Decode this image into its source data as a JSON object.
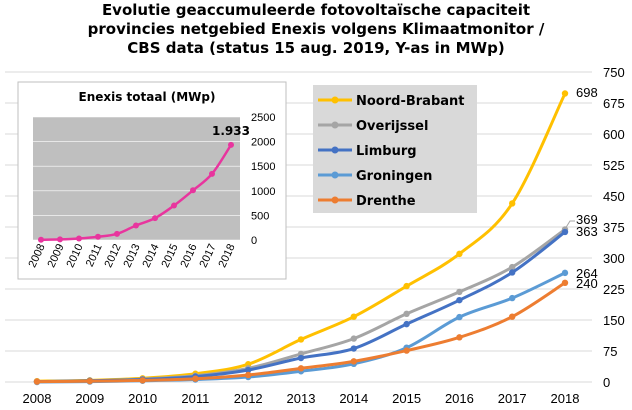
{
  "title_lines": [
    "Evolutie geaccumuleerde fotovoltaïsche capaciteit",
    "provincies netgebied Enexis volgens Klimaatmonitor /",
    "CBS data (status 15 aug. 2019, Y-as in MWp)"
  ],
  "chart_data": [
    {
      "type": "line",
      "title": "Evolutie geaccumuleerde fotovoltaïsche capaciteit provincies netgebied Enexis volgens Klimaatmonitor / CBS data (status 15 aug. 2019, Y-as in MWp)",
      "x": [
        "2008",
        "2009",
        "2010",
        "2011",
        "2012",
        "2013",
        "2014",
        "2015",
        "2016",
        "2017",
        "2018"
      ],
      "y_ticks": [
        0,
        75,
        150,
        225,
        300,
        375,
        450,
        525,
        600,
        675,
        750
      ],
      "ylim": [
        0,
        750
      ],
      "y_axis_position": "right",
      "legend_position": "top-center",
      "series": [
        {
          "name": "Noord-Brabant",
          "color": "#FFC000",
          "values": [
            2,
            4,
            9,
            20,
            43,
            103,
            158,
            232,
            310,
            432,
            698
          ],
          "end_label": "698"
        },
        {
          "name": "Overijssel",
          "color": "#A5A5A5",
          "values": [
            1,
            3,
            7,
            15,
            33,
            68,
            105,
            165,
            218,
            278,
            369
          ],
          "end_label": "369"
        },
        {
          "name": "Limburg",
          "color": "#4472C4",
          "values": [
            1,
            3,
            6,
            13,
            29,
            58,
            81,
            140,
            198,
            265,
            363
          ],
          "end_label": "363"
        },
        {
          "name": "Groningen",
          "color": "#5B9BD5",
          "values": [
            0,
            1,
            3,
            6,
            12,
            26,
            44,
            83,
            157,
            203,
            264
          ],
          "end_label": "264"
        },
        {
          "name": "Drenthe",
          "color": "#ED7D31",
          "values": [
            1,
            2,
            4,
            8,
            17,
            33,
            50,
            76,
            108,
            158,
            240
          ],
          "end_label": "240"
        }
      ]
    },
    {
      "type": "line",
      "title": "Enexis totaal (MWp)",
      "x": [
        "2008",
        "2009",
        "2010",
        "2011",
        "2012",
        "2013",
        "2014",
        "2015",
        "2016",
        "2017",
        "2018"
      ],
      "y_ticks": [
        0,
        500,
        1000,
        1500,
        2000,
        2500
      ],
      "ylim": [
        0,
        2500
      ],
      "y_axis_position": "right",
      "series": [
        {
          "color": "#E8359E",
          "values": [
            5,
            12,
            30,
            65,
            125,
            295,
            445,
            700,
            1010,
            1345,
            1933
          ],
          "end_label": "1.933"
        }
      ]
    }
  ]
}
